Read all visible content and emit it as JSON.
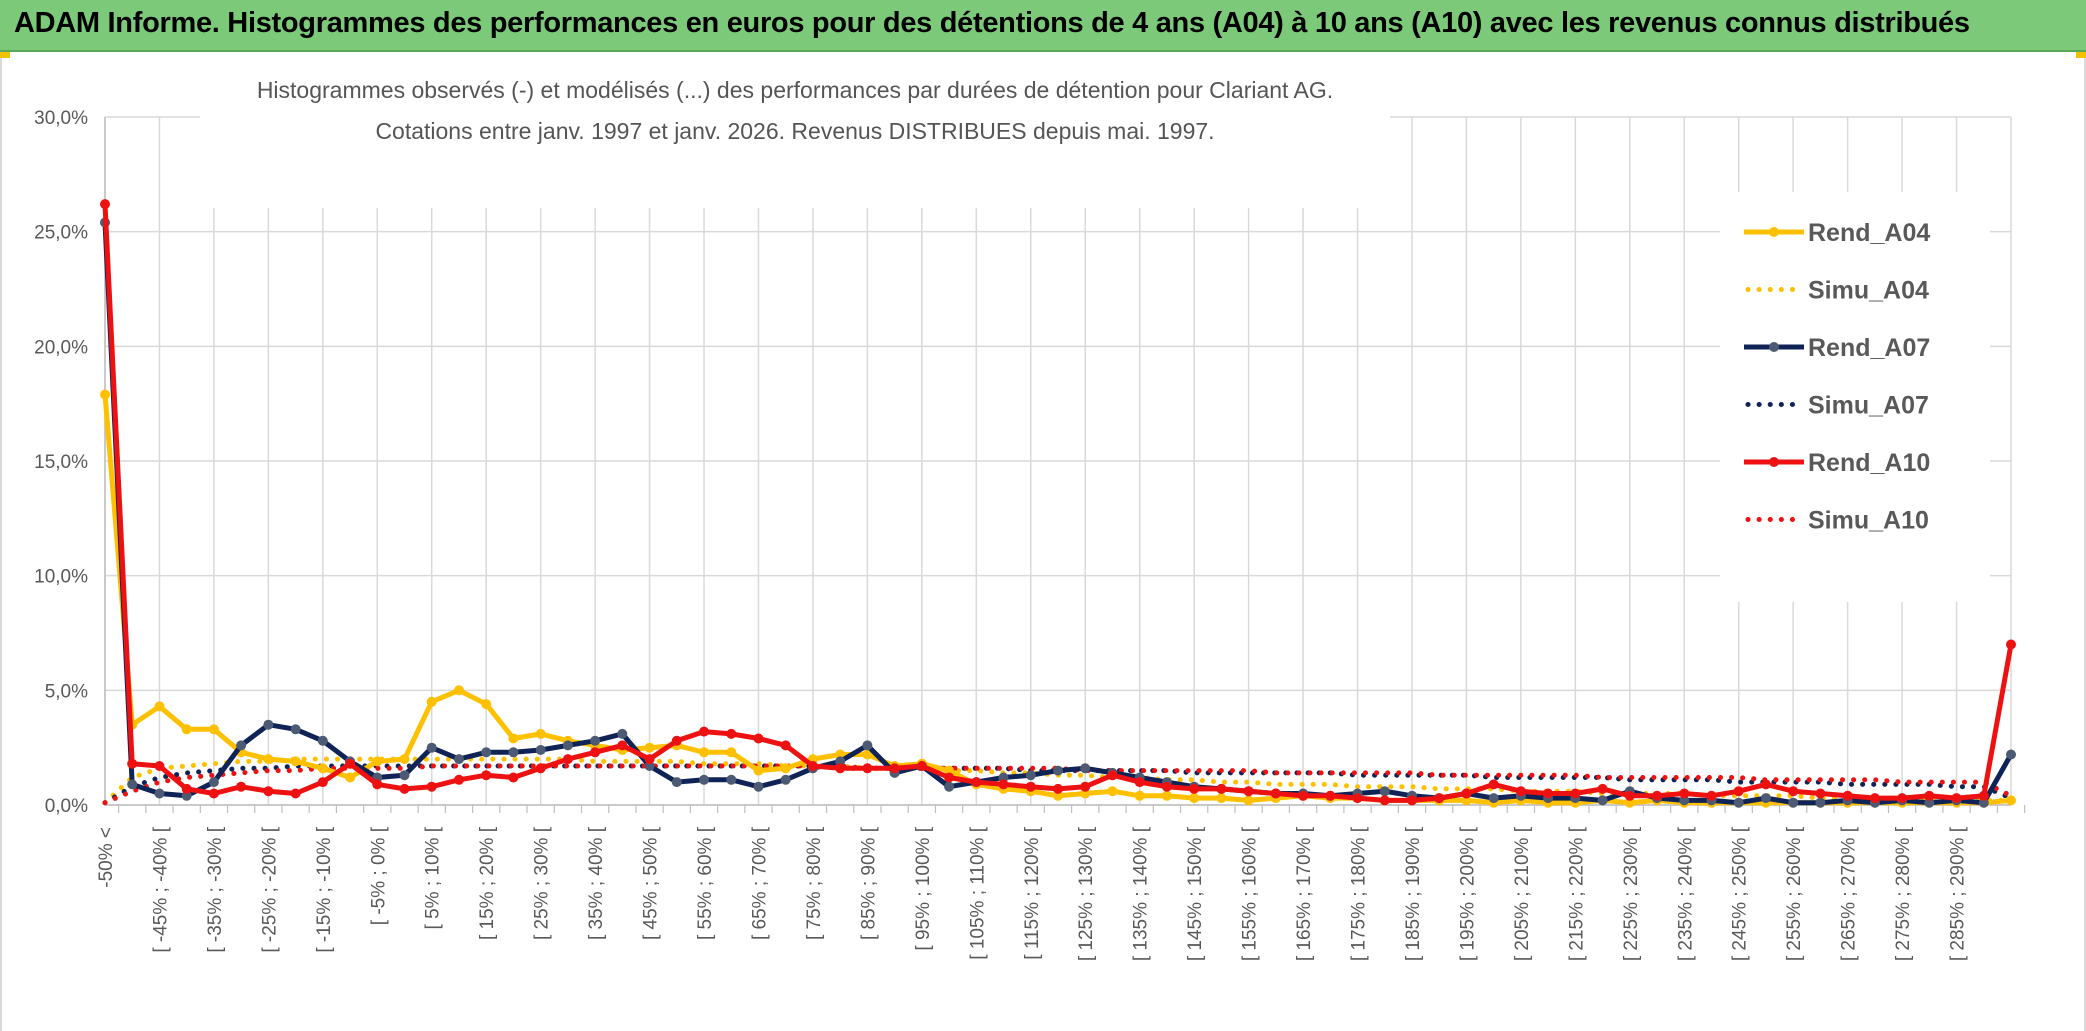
{
  "header": {
    "title": "ADAM Informe. Histogrammes des performances en euros pour des détentions de 4 ans (A04) à 10 ans (A10) avec les revenus connus distribués"
  },
  "colors": {
    "banner": "#7dc97a",
    "A04": "#ffc000",
    "A07": "#0f2356",
    "A10": "#ee1111"
  },
  "chart_data": {
    "type": "line",
    "title_line1": "Histogrammes observés (-) et modélisés (...) des performances par durées de détention pour Clariant AG.",
    "title_line2": "Cotations entre janv. 1997 et janv. 2026. Revenus DISTRIBUES depuis mai. 1997.",
    "xlabel": "",
    "ylabel": "",
    "ylim": [
      0,
      30
    ],
    "y_ticks": [
      "0,0%",
      "5,0%",
      "10,0%",
      "15,0%",
      "20,0%",
      "25,0%",
      "30,0%"
    ],
    "x_tick_labels": [
      "-50% <",
      "[ -45% ; -40% [",
      "[ -35% ; -30% [",
      "[ -25% ; -20% [",
      "[ -15% ; -10% [",
      "[ -5% ; 0% [",
      "[ 5% ; 10% [",
      "[ 15% ; 20% [",
      "[ 25% ; 30% [",
      "[ 35% ; 40% [",
      "[ 45% ; 50% [",
      "[ 55% ; 60% [",
      "[ 65% ; 70% [",
      "[ 75% ; 80% [",
      "[ 85% ; 90% [",
      "[ 95% ; 100% [",
      "[ 105% ; 110% [",
      "[ 115% ; 120% [",
      "[ 125% ; 130% [",
      "[ 135% ; 140% [",
      "[ 145% ; 150% [",
      "[ 155% ; 160% [",
      "[ 165% ; 170% [",
      "[ 175% ; 180% [",
      "[ 185% ; 190% [",
      "[ 195% ; 200% [",
      "[ 205% ; 210% [",
      "[ 215% ; 220% [",
      "[ 225% ; 230% [",
      "[ 235% ; 240% [",
      "[ 245% ; 250% [",
      "[ 255% ; 260% [",
      "[ 265% ; 270% [",
      "[ 275% ; 280% [",
      "[ 285% ; 290% ["
    ],
    "n_categories": 71,
    "series": [
      {
        "name": "Rend_A04",
        "style": "solid",
        "color": "#ffc000",
        "values": [
          17.9,
          3.5,
          4.3,
          3.3,
          3.3,
          2.3,
          2.0,
          1.9,
          1.6,
          1.2,
          1.9,
          2.0,
          4.5,
          5.0,
          4.4,
          2.9,
          3.1,
          2.8,
          2.6,
          2.4,
          2.5,
          2.6,
          2.3,
          2.3,
          1.5,
          1.6,
          2.0,
          2.2,
          2.2,
          1.7,
          1.8,
          1.5,
          0.9,
          0.7,
          0.6,
          0.4,
          0.5,
          0.6,
          0.4,
          0.4,
          0.3,
          0.3,
          0.2,
          0.3,
          0.4,
          0.3,
          0.3,
          0.2,
          0.2,
          0.2,
          0.2,
          0.1,
          0.2,
          0.1,
          0.1,
          0.2,
          0.1,
          0.2,
          0.1,
          0.1,
          0.1,
          0.1,
          0.1,
          0.1,
          0.1,
          0.1,
          0.1,
          0.1,
          0.1,
          0.1,
          0.2
        ]
      },
      {
        "name": "Simu_A04",
        "style": "dotted",
        "color": "#ffc000",
        "values": [
          0.1,
          1.2,
          1.6,
          1.7,
          1.8,
          1.9,
          1.9,
          2.0,
          2.0,
          2.0,
          2.0,
          2.0,
          2.0,
          2.0,
          2.0,
          2.0,
          2.0,
          2.0,
          1.9,
          1.9,
          1.9,
          1.9,
          1.8,
          1.8,
          1.8,
          1.7,
          1.7,
          1.7,
          1.6,
          1.6,
          1.6,
          1.5,
          1.5,
          1.4,
          1.4,
          1.3,
          1.3,
          1.2,
          1.2,
          1.1,
          1.1,
          1.0,
          1.0,
          0.9,
          0.9,
          0.9,
          0.8,
          0.8,
          0.8,
          0.7,
          0.7,
          0.7,
          0.6,
          0.6,
          0.6,
          0.5,
          0.5,
          0.5,
          0.5,
          0.4,
          0.4,
          0.4,
          0.4,
          0.3,
          0.3,
          0.3,
          0.3,
          0.3,
          0.3,
          0.2,
          0.2
        ]
      },
      {
        "name": "Rend_A07",
        "style": "solid",
        "color": "#0f2356",
        "values": [
          25.4,
          0.9,
          0.5,
          0.4,
          1.0,
          2.6,
          3.5,
          3.3,
          2.8,
          1.9,
          1.2,
          1.3,
          2.5,
          2.0,
          2.3,
          2.3,
          2.4,
          2.6,
          2.8,
          3.1,
          1.7,
          1.0,
          1.1,
          1.1,
          0.8,
          1.1,
          1.6,
          1.9,
          2.6,
          1.4,
          1.7,
          0.8,
          1.0,
          1.2,
          1.3,
          1.5,
          1.6,
          1.4,
          1.2,
          1.0,
          0.8,
          0.7,
          0.6,
          0.5,
          0.5,
          0.4,
          0.5,
          0.6,
          0.4,
          0.3,
          0.5,
          0.3,
          0.4,
          0.3,
          0.3,
          0.2,
          0.6,
          0.3,
          0.2,
          0.2,
          0.1,
          0.3,
          0.1,
          0.1,
          0.2,
          0.1,
          0.2,
          0.1,
          0.2,
          0.1,
          2.2
        ]
      },
      {
        "name": "Simu_A07",
        "style": "dotted",
        "color": "#0f2356",
        "values": [
          0.1,
          0.8,
          1.2,
          1.4,
          1.5,
          1.6,
          1.6,
          1.7,
          1.7,
          1.7,
          1.7,
          1.7,
          1.7,
          1.7,
          1.7,
          1.7,
          1.7,
          1.7,
          1.7,
          1.7,
          1.7,
          1.7,
          1.7,
          1.7,
          1.7,
          1.7,
          1.7,
          1.6,
          1.6,
          1.6,
          1.6,
          1.6,
          1.6,
          1.6,
          1.5,
          1.5,
          1.5,
          1.5,
          1.5,
          1.5,
          1.4,
          1.4,
          1.4,
          1.4,
          1.4,
          1.4,
          1.3,
          1.3,
          1.3,
          1.3,
          1.3,
          1.2,
          1.2,
          1.2,
          1.2,
          1.2,
          1.1,
          1.1,
          1.1,
          1.1,
          1.0,
          1.0,
          1.0,
          1.0,
          0.9,
          0.9,
          0.9,
          0.9,
          0.8,
          0.8,
          0.3
        ]
      },
      {
        "name": "Rend_A10",
        "style": "solid",
        "color": "#ee1111",
        "values": [
          26.2,
          1.8,
          1.7,
          0.7,
          0.5,
          0.8,
          0.6,
          0.5,
          1.0,
          1.8,
          0.9,
          0.7,
          0.8,
          1.1,
          1.3,
          1.2,
          1.6,
          2.0,
          2.3,
          2.6,
          2.0,
          2.8,
          3.2,
          3.1,
          2.9,
          2.6,
          1.7,
          1.6,
          1.6,
          1.6,
          1.7,
          1.2,
          1.0,
          0.9,
          0.8,
          0.7,
          0.8,
          1.3,
          1.0,
          0.8,
          0.7,
          0.7,
          0.6,
          0.5,
          0.4,
          0.4,
          0.3,
          0.2,
          0.2,
          0.3,
          0.5,
          0.9,
          0.6,
          0.5,
          0.5,
          0.7,
          0.4,
          0.4,
          0.5,
          0.4,
          0.6,
          0.9,
          0.6,
          0.5,
          0.4,
          0.3,
          0.3,
          0.4,
          0.3,
          0.4,
          7.0
        ]
      },
      {
        "name": "Simu_A10",
        "style": "dotted",
        "color": "#ee1111",
        "values": [
          0.1,
          0.6,
          1.0,
          1.2,
          1.3,
          1.4,
          1.5,
          1.5,
          1.6,
          1.6,
          1.6,
          1.6,
          1.7,
          1.7,
          1.7,
          1.7,
          1.7,
          1.7,
          1.7,
          1.7,
          1.7,
          1.7,
          1.7,
          1.7,
          1.7,
          1.7,
          1.7,
          1.7,
          1.6,
          1.6,
          1.6,
          1.6,
          1.6,
          1.6,
          1.6,
          1.6,
          1.5,
          1.5,
          1.5,
          1.5,
          1.5,
          1.5,
          1.5,
          1.4,
          1.4,
          1.4,
          1.4,
          1.4,
          1.4,
          1.3,
          1.3,
          1.3,
          1.3,
          1.3,
          1.3,
          1.2,
          1.2,
          1.2,
          1.2,
          1.2,
          1.2,
          1.1,
          1.1,
          1.1,
          1.1,
          1.1,
          1.0,
          1.0,
          1.0,
          1.0,
          0.4
        ]
      }
    ],
    "legend_position": "right",
    "grid": true
  }
}
